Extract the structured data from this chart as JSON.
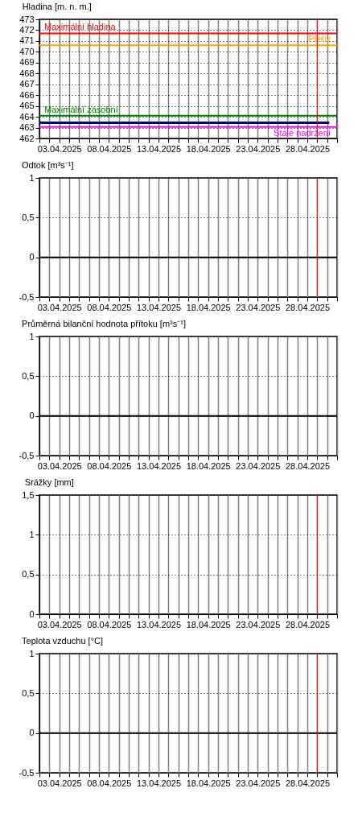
{
  "chart_data": [
    {
      "type": "line",
      "title": "Hladina [m. n. m.]",
      "grid": true,
      "xlim": [
        "2025-04-01",
        "2025-05-01"
      ],
      "xticks": [
        {
          "value": "2025-04-01",
          "label": null
        },
        {
          "value": "2025-04-02",
          "label": null
        },
        {
          "value": "2025-04-03",
          "label": "03.04.2025"
        },
        {
          "value": "2025-04-04",
          "label": null
        },
        {
          "value": "2025-04-05",
          "label": null
        },
        {
          "value": "2025-04-06",
          "label": null
        },
        {
          "value": "2025-04-07",
          "label": null
        },
        {
          "value": "2025-04-08",
          "label": "08.04.2025"
        },
        {
          "value": "2025-04-09",
          "label": null
        },
        {
          "value": "2025-04-10",
          "label": null
        },
        {
          "value": "2025-04-11",
          "label": null
        },
        {
          "value": "2025-04-12",
          "label": null
        },
        {
          "value": "2025-04-13",
          "label": "13.04.2025"
        },
        {
          "value": "2025-04-14",
          "label": null
        },
        {
          "value": "2025-04-15",
          "label": null
        },
        {
          "value": "2025-04-16",
          "label": null
        },
        {
          "value": "2025-04-17",
          "label": null
        },
        {
          "value": "2025-04-18",
          "label": "18.04.2025"
        },
        {
          "value": "2025-04-19",
          "label": null
        },
        {
          "value": "2025-04-20",
          "label": null
        },
        {
          "value": "2025-04-21",
          "label": null
        },
        {
          "value": "2025-04-22",
          "label": null
        },
        {
          "value": "2025-04-23",
          "label": "23.04.2025"
        },
        {
          "value": "2025-04-24",
          "label": null
        },
        {
          "value": "2025-04-25",
          "label": null
        },
        {
          "value": "2025-04-26",
          "label": null
        },
        {
          "value": "2025-04-27",
          "label": null
        },
        {
          "value": "2025-04-28",
          "label": "28.04.2025"
        },
        {
          "value": "2025-04-29",
          "label": null
        },
        {
          "value": "2025-04-30",
          "label": null
        },
        {
          "value": "2025-05-01",
          "label": null
        }
      ],
      "ylim": [
        462,
        473
      ],
      "yticks": [
        462,
        463,
        464,
        465,
        466,
        467,
        468,
        469,
        470,
        471,
        472,
        473
      ],
      "series": [
        {
          "color": "#000080",
          "x": [
            "2025-04-01",
            "2025-04-30T05:00"
          ],
          "values": [
            463.45,
            463.45
          ]
        }
      ],
      "ref_lines": [
        {
          "axis": "y",
          "value": 471.7,
          "label": "Maximální hladina",
          "color": "#ff0000"
        },
        {
          "axis": "y",
          "value": 470.6,
          "label": "Přeliv",
          "color": "#ffa500"
        },
        {
          "axis": "y",
          "value": 464.1,
          "label": "Maximální zásobní",
          "color": "#008000"
        },
        {
          "axis": "y",
          "value": 463.05,
          "label": "Stálé nadržení",
          "color": "#ff00ff"
        },
        {
          "axis": "x",
          "value": "2025-04-29",
          "color": "#ff0000"
        }
      ]
    },
    {
      "type": "line",
      "title": "Odtok [m³s⁻¹]",
      "grid": true,
      "xlim": [
        "2025-04-01",
        "2025-05-01"
      ],
      "xticks": [
        {
          "value": "2025-04-01",
          "label": null
        },
        {
          "value": "2025-04-02",
          "label": null
        },
        {
          "value": "2025-04-03",
          "label": "03.04.2025"
        },
        {
          "value": "2025-04-04",
          "label": null
        },
        {
          "value": "2025-04-05",
          "label": null
        },
        {
          "value": "2025-04-06",
          "label": null
        },
        {
          "value": "2025-04-07",
          "label": null
        },
        {
          "value": "2025-04-08",
          "label": "08.04.2025"
        },
        {
          "value": "2025-04-09",
          "label": null
        },
        {
          "value": "2025-04-10",
          "label": null
        },
        {
          "value": "2025-04-11",
          "label": null
        },
        {
          "value": "2025-04-12",
          "label": null
        },
        {
          "value": "2025-04-13",
          "label": "13.04.2025"
        },
        {
          "value": "2025-04-14",
          "label": null
        },
        {
          "value": "2025-04-15",
          "label": null
        },
        {
          "value": "2025-04-16",
          "label": null
        },
        {
          "value": "2025-04-17",
          "label": null
        },
        {
          "value": "2025-04-18",
          "label": "18.04.2025"
        },
        {
          "value": "2025-04-19",
          "label": null
        },
        {
          "value": "2025-04-20",
          "label": null
        },
        {
          "value": "2025-04-21",
          "label": null
        },
        {
          "value": "2025-04-22",
          "label": null
        },
        {
          "value": "2025-04-23",
          "label": "23.04.2025"
        },
        {
          "value": "2025-04-24",
          "label": null
        },
        {
          "value": "2025-04-25",
          "label": null
        },
        {
          "value": "2025-04-26",
          "label": null
        },
        {
          "value": "2025-04-27",
          "label": null
        },
        {
          "value": "2025-04-28",
          "label": "28.04.2025"
        },
        {
          "value": "2025-04-29",
          "label": null
        },
        {
          "value": "2025-04-30",
          "label": null
        },
        {
          "value": "2025-05-01",
          "label": null
        }
      ],
      "ylim": [
        -0.5,
        1
      ],
      "yticks": [
        {
          "value": -0.5,
          "label": "-0,5"
        },
        0,
        {
          "value": 0.5,
          "label": "0,5"
        },
        1
      ],
      "ref_lines": [
        {
          "axis": "y",
          "value": 0,
          "color": "#000000"
        },
        {
          "axis": "x",
          "value": "2025-04-29",
          "color": "#ff0000"
        }
      ]
    },
    {
      "type": "line",
      "title": "Průměrná bilanční hodnota přítoku   [m³s⁻¹]",
      "grid": true,
      "xlim": [
        "2025-04-01",
        "2025-05-01"
      ],
      "xticks": [
        {
          "value": "2025-04-01",
          "label": null
        },
        {
          "value": "2025-04-02",
          "label": null
        },
        {
          "value": "2025-04-03",
          "label": "03.04.2025"
        },
        {
          "value": "2025-04-04",
          "label": null
        },
        {
          "value": "2025-04-05",
          "label": null
        },
        {
          "value": "2025-04-06",
          "label": null
        },
        {
          "value": "2025-04-07",
          "label": null
        },
        {
          "value": "2025-04-08",
          "label": "08.04.2025"
        },
        {
          "value": "2025-04-09",
          "label": null
        },
        {
          "value": "2025-04-10",
          "label": null
        },
        {
          "value": "2025-04-11",
          "label": null
        },
        {
          "value": "2025-04-12",
          "label": null
        },
        {
          "value": "2025-04-13",
          "label": "13.04.2025"
        },
        {
          "value": "2025-04-14",
          "label": null
        },
        {
          "value": "2025-04-15",
          "label": null
        },
        {
          "value": "2025-04-16",
          "label": null
        },
        {
          "value": "2025-04-17",
          "label": null
        },
        {
          "value": "2025-04-18",
          "label": "18.04.2025"
        },
        {
          "value": "2025-04-19",
          "label": null
        },
        {
          "value": "2025-04-20",
          "label": null
        },
        {
          "value": "2025-04-21",
          "label": null
        },
        {
          "value": "2025-04-22",
          "label": null
        },
        {
          "value": "2025-04-23",
          "label": "23.04.2025"
        },
        {
          "value": "2025-04-24",
          "label": null
        },
        {
          "value": "2025-04-25",
          "label": null
        },
        {
          "value": "2025-04-26",
          "label": null
        },
        {
          "value": "2025-04-27",
          "label": null
        },
        {
          "value": "2025-04-28",
          "label": "28.04.2025"
        },
        {
          "value": "2025-04-29",
          "label": null
        },
        {
          "value": "2025-04-30",
          "label": null
        },
        {
          "value": "2025-05-01",
          "label": null
        }
      ],
      "ylim": [
        -0.5,
        1
      ],
      "yticks": [
        {
          "value": -0.5,
          "label": "-0,5"
        },
        0,
        {
          "value": 0.5,
          "label": "0,5"
        },
        1
      ],
      "ref_lines": [
        {
          "axis": "y",
          "value": 0,
          "color": "#000000"
        }
      ]
    },
    {
      "type": "line",
      "title": "Srážky [mm]",
      "grid": true,
      "xlim": [
        "2025-04-01",
        "2025-05-01"
      ],
      "xticks": [
        {
          "value": "2025-04-01",
          "label": null
        },
        {
          "value": "2025-04-02",
          "label": null
        },
        {
          "value": "2025-04-03",
          "label": "03.04.2025"
        },
        {
          "value": "2025-04-04",
          "label": null
        },
        {
          "value": "2025-04-05",
          "label": null
        },
        {
          "value": "2025-04-06",
          "label": null
        },
        {
          "value": "2025-04-07",
          "label": null
        },
        {
          "value": "2025-04-08",
          "label": "08.04.2025"
        },
        {
          "value": "2025-04-09",
          "label": null
        },
        {
          "value": "2025-04-10",
          "label": null
        },
        {
          "value": "2025-04-11",
          "label": null
        },
        {
          "value": "2025-04-12",
          "label": null
        },
        {
          "value": "2025-04-13",
          "label": "13.04.2025"
        },
        {
          "value": "2025-04-14",
          "label": null
        },
        {
          "value": "2025-04-15",
          "label": null
        },
        {
          "value": "2025-04-16",
          "label": null
        },
        {
          "value": "2025-04-17",
          "label": null
        },
        {
          "value": "2025-04-18",
          "label": "18.04.2025"
        },
        {
          "value": "2025-04-19",
          "label": null
        },
        {
          "value": "2025-04-20",
          "label": null
        },
        {
          "value": "2025-04-21",
          "label": null
        },
        {
          "value": "2025-04-22",
          "label": null
        },
        {
          "value": "2025-04-23",
          "label": "23.04.2025"
        },
        {
          "value": "2025-04-24",
          "label": null
        },
        {
          "value": "2025-04-25",
          "label": null
        },
        {
          "value": "2025-04-26",
          "label": null
        },
        {
          "value": "2025-04-27",
          "label": null
        },
        {
          "value": "2025-04-28",
          "label": "28.04.2025"
        },
        {
          "value": "2025-04-29",
          "label": null
        },
        {
          "value": "2025-04-30",
          "label": null
        },
        {
          "value": "2025-05-01",
          "label": null
        }
      ],
      "ylim": [
        0,
        1.5
      ],
      "yticks": [
        0,
        {
          "value": 0.5,
          "label": "0,5"
        },
        1,
        {
          "value": 1.5,
          "label": "1,5"
        }
      ],
      "ref_lines": [
        {
          "axis": "x",
          "value": "2025-04-29",
          "color": "#ff0000"
        }
      ]
    },
    {
      "type": "line",
      "title": "Teplota vzduchu [°C]",
      "grid": true,
      "xlim": [
        "2025-04-01",
        "2025-05-01"
      ],
      "xticks": [
        {
          "value": "2025-04-01",
          "label": null
        },
        {
          "value": "2025-04-02",
          "label": null
        },
        {
          "value": "2025-04-03",
          "label": "03.04.2025"
        },
        {
          "value": "2025-04-04",
          "label": null
        },
        {
          "value": "2025-04-05",
          "label": null
        },
        {
          "value": "2025-04-06",
          "label": null
        },
        {
          "value": "2025-04-07",
          "label": null
        },
        {
          "value": "2025-04-08",
          "label": "08.04.2025"
        },
        {
          "value": "2025-04-09",
          "label": null
        },
        {
          "value": "2025-04-10",
          "label": null
        },
        {
          "value": "2025-04-11",
          "label": null
        },
        {
          "value": "2025-04-12",
          "label": null
        },
        {
          "value": "2025-04-13",
          "label": "13.04.2025"
        },
        {
          "value": "2025-04-14",
          "label": null
        },
        {
          "value": "2025-04-15",
          "label": null
        },
        {
          "value": "2025-04-16",
          "label": null
        },
        {
          "value": "2025-04-17",
          "label": null
        },
        {
          "value": "2025-04-18",
          "label": "18.04.2025"
        },
        {
          "value": "2025-04-19",
          "label": null
        },
        {
          "value": "2025-04-20",
          "label": null
        },
        {
          "value": "2025-04-21",
          "label": null
        },
        {
          "value": "2025-04-22",
          "label": null
        },
        {
          "value": "2025-04-23",
          "label": "23.04.2025"
        },
        {
          "value": "2025-04-24",
          "label": null
        },
        {
          "value": "2025-04-25",
          "label": null
        },
        {
          "value": "2025-04-26",
          "label": null
        },
        {
          "value": "2025-04-27",
          "label": null
        },
        {
          "value": "2025-04-28",
          "label": "28.04.2025"
        },
        {
          "value": "2025-04-29",
          "label": null
        },
        {
          "value": "2025-04-30",
          "label": null
        },
        {
          "value": "2025-05-01",
          "label": null
        }
      ],
      "ylim": [
        -0.5,
        1
      ],
      "yticks": [
        {
          "value": -0.5,
          "label": "-0,5"
        },
        0,
        {
          "value": 0.5,
          "label": "0,5"
        },
        1
      ],
      "ref_lines": [
        {
          "axis": "y",
          "value": 0,
          "color": "#000000"
        },
        {
          "axis": "x",
          "value": "2025-04-29",
          "color": "#ff0000"
        }
      ]
    }
  ]
}
